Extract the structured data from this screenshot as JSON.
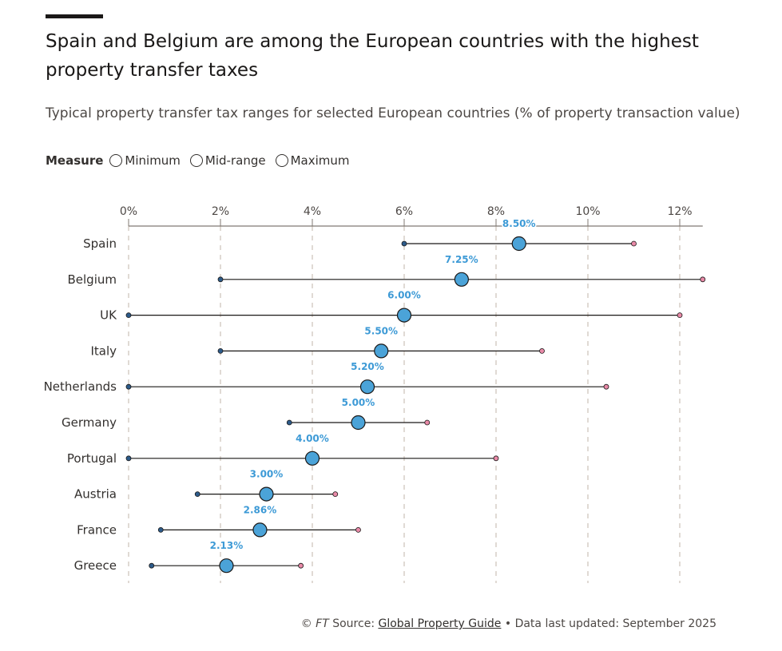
{
  "title": "Spain and Belgium are among the European countries with the highest property transfer taxes",
  "subtitle": "Typical property transfer tax ranges for selected European countries (% of property transaction value)",
  "legend": {
    "label": "Measure",
    "options": [
      "Minimum",
      "Mid-range",
      "Maximum"
    ]
  },
  "footer": {
    "copyright": "© ",
    "ft": "FT",
    "source_prefix": " Source: ",
    "source_link": "Global Property Guide",
    "updated": " • Data last updated: September 2025"
  },
  "colors": {
    "minimum": "#2d5b8a",
    "mid": "#4ba3d8",
    "maximum": "#e98aa8",
    "label": "#3d9ad6"
  },
  "chart_data": {
    "type": "dot-range",
    "xlim": [
      0,
      12.5
    ],
    "xticks": [
      "0%",
      "2%",
      "4%",
      "6%",
      "8%",
      "10%",
      "12%"
    ],
    "xtick_values": [
      0,
      2,
      4,
      6,
      8,
      10,
      12
    ],
    "grid": true,
    "categories": [
      "Spain",
      "Belgium",
      "UK",
      "Italy",
      "Netherlands",
      "Germany",
      "Portugal",
      "Austria",
      "France",
      "Greece"
    ],
    "series": [
      {
        "name": "Minimum",
        "values": [
          6,
          2,
          0,
          2,
          0,
          3.5,
          0,
          1.5,
          0.7,
          0.5
        ]
      },
      {
        "name": "Mid-range",
        "values": [
          8.5,
          7.25,
          6.0,
          5.5,
          5.2,
          5.0,
          4.0,
          3.0,
          2.86,
          2.13
        ]
      },
      {
        "name": "Maximum",
        "values": [
          11,
          12.5,
          12,
          9,
          10.4,
          6.5,
          8,
          4.5,
          5,
          3.75
        ]
      }
    ],
    "data_labels": [
      "8.50%",
      "7.25%",
      "6.00%",
      "5.50%",
      "5.20%",
      "5.00%",
      "4.00%",
      "3.00%",
      "2.86%",
      "2.13%"
    ]
  }
}
